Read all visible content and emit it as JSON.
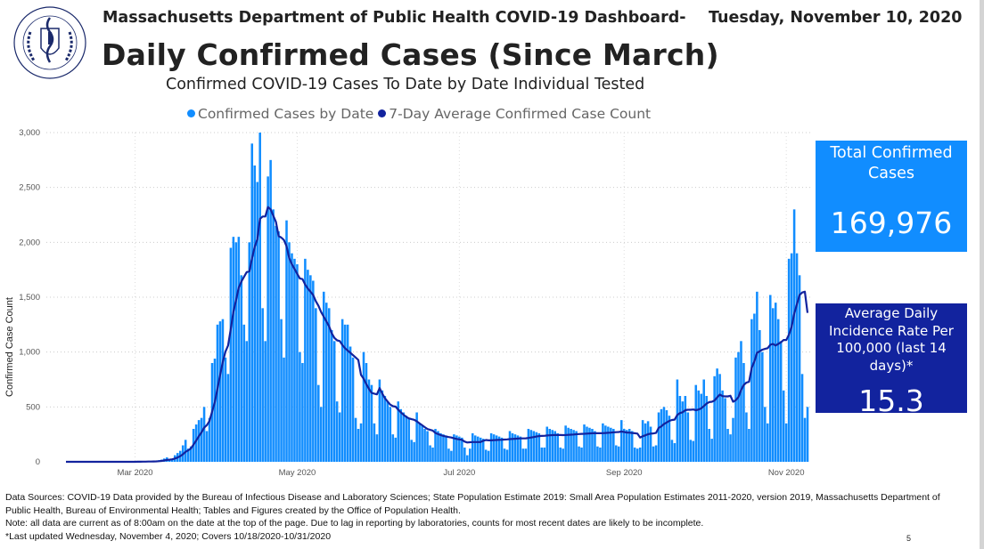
{
  "header": {
    "department_title": "Massachusetts Department of Public Health COVID-19 Dashboard-",
    "date": "Tuesday, November 10, 2020",
    "main_title": "Daily Confirmed Cases (Since March)",
    "subtitle": "Confirmed COVID-19 Cases To Date by Date Individual Tested",
    "logo_text": "COMMONWEALTH OF MASSACHUSETTS · DEPARTMENT OF PUBLIC HEALTH"
  },
  "colors": {
    "bars": "#118DFF",
    "line": "#12239E",
    "total_box": "#118DFF",
    "rate_box": "#12239E"
  },
  "chart_data": {
    "type": "bar",
    "title": "",
    "xlabel": "",
    "ylabel": "Confirmed Case Count",
    "ylim": [
      0,
      3000
    ],
    "yticks": [
      0,
      500,
      1000,
      1500,
      2000,
      2500,
      3000
    ],
    "ytick_labels": [
      "0",
      "500",
      "1,000",
      "1,500",
      "2,000",
      "2,500",
      "3,000"
    ],
    "xlim": [
      "2020-02-04",
      "2020-11-10"
    ],
    "xticks": [
      "2020-03-01",
      "2020-05-01",
      "2020-07-01",
      "2020-09-01",
      "2020-11-01"
    ],
    "xtick_labels": [
      "Mar 2020",
      "May 2020",
      "Jul 2020",
      "Sep 2020",
      "Nov 2020"
    ],
    "grid": true,
    "legend_position": "top-center",
    "date_range": [
      "2020-03-01",
      "2020-11-09"
    ],
    "frequency": "daily",
    "series": [
      {
        "name": "Confirmed Cases by Date",
        "type": "bar",
        "values": [
          0,
          1,
          2,
          3,
          4,
          5,
          2,
          3,
          10,
          15,
          20,
          30,
          40,
          20,
          25,
          60,
          80,
          100,
          150,
          200,
          120,
          140,
          300,
          340,
          380,
          400,
          500,
          280,
          400,
          900,
          940,
          1250,
          1280,
          1300,
          950,
          800,
          1950,
          2050,
          2000,
          2050,
          1700,
          1250,
          1100,
          2000,
          2900,
          2700,
          2550,
          3000,
          1400,
          1100,
          2600,
          2750,
          2300,
          2150,
          2100,
          1300,
          950,
          2200,
          2000,
          1900,
          1850,
          1800,
          1000,
          900,
          1850,
          1750,
          1700,
          1650,
          1400,
          700,
          500,
          1550,
          1450,
          1400,
          1200,
          1100,
          550,
          450,
          1300,
          1250,
          1250,
          1050,
          950,
          400,
          300,
          350,
          1000,
          900,
          750,
          700,
          350,
          250,
          750,
          650,
          600,
          550,
          500,
          250,
          220,
          550,
          480,
          450,
          420,
          400,
          200,
          180,
          450,
          350,
          330,
          300,
          280,
          150,
          130,
          300,
          280,
          260,
          250,
          240,
          120,
          100,
          250,
          240,
          230,
          220,
          130,
          60,
          120,
          260,
          240,
          230,
          220,
          210,
          110,
          100,
          260,
          250,
          240,
          230,
          220,
          120,
          110,
          280,
          260,
          250,
          240,
          230,
          120,
          120,
          300,
          290,
          280,
          270,
          260,
          130,
          130,
          320,
          300,
          290,
          280,
          260,
          130,
          120,
          330,
          310,
          300,
          290,
          280,
          140,
          130,
          340,
          320,
          310,
          300,
          280,
          140,
          130,
          350,
          330,
          320,
          310,
          300,
          150,
          140,
          380,
          300,
          290,
          300,
          280,
          130,
          120,
          130,
          380,
          350,
          370,
          320,
          140,
          150,
          450,
          480,
          500,
          470,
          420,
          200,
          170,
          750,
          600,
          550,
          600,
          450,
          200,
          190,
          700,
          650,
          620,
          750,
          600,
          300,
          210,
          780,
          850,
          800,
          650,
          580,
          300,
          250,
          400,
          950,
          1000,
          1100,
          900,
          450,
          300,
          1300,
          1350,
          1550,
          1200,
          1000,
          500,
          350,
          1520,
          1400,
          1450,
          1300,
          1100,
          650,
          350,
          1850,
          1900,
          2300,
          1900,
          1700,
          800,
          400,
          500
        ]
      },
      {
        "name": "7-Day Average Confirmed Case Count",
        "type": "line",
        "rolling_window_days": 7
      }
    ]
  },
  "cards": {
    "total": {
      "label": "Total Confirmed Cases",
      "value": "169,976"
    },
    "rate": {
      "label": "Average Daily Incidence Rate Per 100,000 (last 14 days)*",
      "value": "15.3"
    }
  },
  "footer": {
    "sources": "Data Sources: COVID-19 Data provided by the Bureau of Infectious Disease and Laboratory Sciences; State Population Estimate 2019: Small Area Population Estimates 2011-2020, version 2019, Massachusetts Department of Public Health, Bureau of Environmental Health; Tables and Figures created by the Office of Population Health.",
    "note": "Note: all data are current as of 8:00am on the date at the top of the page. Due to lag in reporting by laboratories, counts for most recent dates are likely to be incomplete.",
    "last_updated": "*Last updated Wednesday, November 4, 2020; Covers 10/18/2020-10/31/2020",
    "page_number": "5"
  }
}
